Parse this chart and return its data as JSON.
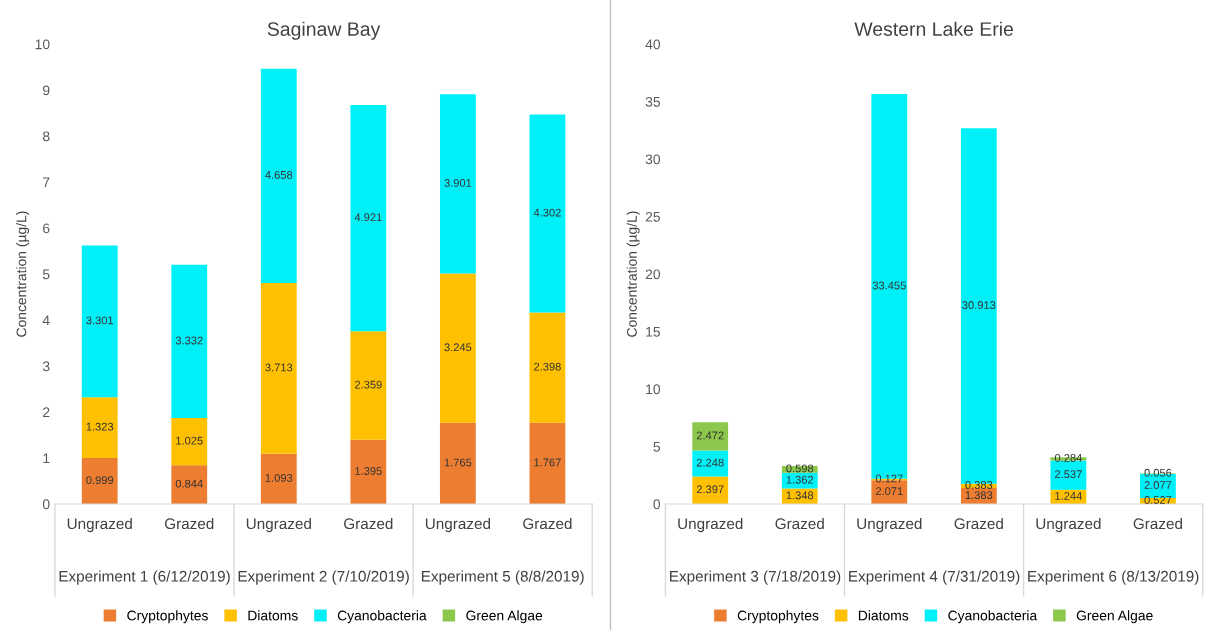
{
  "chart_data": [
    {
      "type": "bar",
      "title": "Saginaw Bay",
      "ylabel": "Concentration (µg/L)",
      "stacked": true,
      "legend": "bottom",
      "grid": false,
      "categories": [
        "Ungrazed",
        "Grazed",
        "Ungrazed",
        "Grazed",
        "Ungrazed",
        "Grazed"
      ],
      "annotations": [
        "Experiment 1 (6/12/2019)",
        "Experiment 2 (7/10/2019)",
        "Experiment 5 (8/8/2019)"
      ],
      "ylim": [
        0,
        10
      ],
      "yticks": [
        0,
        1,
        2,
        3,
        4,
        5,
        6,
        7,
        8,
        9,
        10
      ],
      "series": [
        {
          "name": "Cryptophytes",
          "color": "#ed7d31",
          "values": [
            0.999,
            0.844,
            1.093,
            1.395,
            1.765,
            1.767
          ],
          "value_labels": [
            "0.999",
            "0.844",
            "1.093",
            "1.395",
            "1.765",
            "1.767"
          ]
        },
        {
          "name": "Diatoms",
          "color": "#ffc000",
          "values": [
            1.323,
            1.025,
            3.713,
            2.359,
            3.245,
            2.398
          ],
          "value_labels": [
            "1.323",
            "1.025",
            "3.713",
            "2.359",
            "3.245",
            "2.398"
          ]
        },
        {
          "name": "Cyanobacteria",
          "color": "#00f0f8",
          "values": [
            3.301,
            3.332,
            4.658,
            4.921,
            3.901,
            4.302
          ],
          "value_labels": [
            "3.301",
            "3.332",
            "4.658",
            "4.921",
            "3.901",
            "4.302"
          ]
        },
        {
          "name": "Green Algae",
          "color": "#8cc84b",
          "values": [
            null,
            null,
            null,
            null,
            null,
            null
          ],
          "value_labels": [
            null,
            null,
            null,
            null,
            null,
            null
          ]
        }
      ]
    },
    {
      "type": "bar",
      "title": "Western Lake Erie",
      "ylabel": "Concentration (µg/L)",
      "stacked": true,
      "legend": "bottom",
      "grid": false,
      "categories": [
        "Ungrazed",
        "Grazed",
        "Ungrazed",
        "Grazed",
        "Ungrazed",
        "Grazed"
      ],
      "annotations": [
        "Experiment 3 (7/18/2019)",
        "Experiment 4 (7/31/2019)",
        "Experiment 6 (8/13/2019)"
      ],
      "ylim": [
        0,
        40
      ],
      "yticks": [
        0,
        5,
        10,
        15,
        20,
        25,
        30,
        35,
        40
      ],
      "series": [
        {
          "name": "Cryptophytes",
          "color": "#ed7d31",
          "values": [
            null,
            null,
            2.071,
            1.383,
            null,
            null
          ],
          "value_labels": [
            null,
            null,
            "2.071",
            "1.383",
            null,
            null
          ]
        },
        {
          "name": "Diatoms",
          "color": "#ffc000",
          "values": [
            2.397,
            1.348,
            0.127,
            0.383,
            1.244,
            0.527
          ],
          "value_labels": [
            "2.397",
            "1.348",
            "0.127",
            "0.383",
            "1.244",
            "0.527"
          ]
        },
        {
          "name": "Cyanobacteria",
          "color": "#00f0f8",
          "values": [
            2.248,
            1.362,
            33.455,
            30.913,
            2.537,
            2.077
          ],
          "value_labels": [
            "2.248",
            "1.362",
            "33.455",
            "30.913",
            "2.537",
            "2.077"
          ]
        },
        {
          "name": "Green Algae",
          "color": "#8cc84b",
          "values": [
            2.472,
            0.598,
            null,
            null,
            0.284,
            0.056
          ],
          "value_labels": [
            "2.472",
            "0.598",
            null,
            null,
            "0.284",
            "0.056"
          ]
        }
      ]
    }
  ]
}
